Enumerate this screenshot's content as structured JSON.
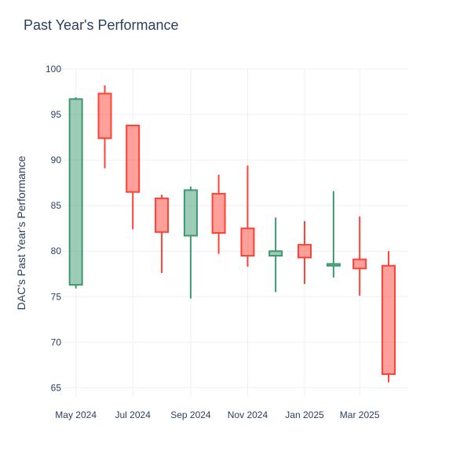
{
  "chart_data": {
    "type": "candlestick",
    "title": "Past Year's Performance",
    "xlabel": "",
    "ylabel": "DAC's Past Year's Performance",
    "ylim": [
      64,
      100
    ],
    "y_ticks": [
      65,
      70,
      75,
      80,
      85,
      90,
      95,
      100
    ],
    "x_ticks": [
      "May 2024",
      "Jul 2024",
      "Sep 2024",
      "Nov 2024",
      "Jan 2025",
      "Mar 2025"
    ],
    "increasing_color": "#3d9970",
    "decreasing_color": "#ff4136",
    "grid": true,
    "candles": [
      {
        "date": "2024-05",
        "open": 76.3,
        "high": 96.9,
        "low": 75.9,
        "close": 96.7
      },
      {
        "date": "2024-06",
        "open": 97.3,
        "high": 98.2,
        "low": 89.1,
        "close": 92.4
      },
      {
        "date": "2024-07",
        "open": 93.8,
        "high": 93.8,
        "low": 82.4,
        "close": 86.5
      },
      {
        "date": "2024-08",
        "open": 85.8,
        "high": 86.2,
        "low": 77.6,
        "close": 82.1
      },
      {
        "date": "2024-09",
        "open": 81.7,
        "high": 87.1,
        "low": 74.8,
        "close": 86.7
      },
      {
        "date": "2024-10",
        "open": 86.3,
        "high": 88.4,
        "low": 79.7,
        "close": 82.0
      },
      {
        "date": "2024-11",
        "open": 82.5,
        "high": 89.4,
        "low": 78.3,
        "close": 79.5
      },
      {
        "date": "2024-12",
        "open": 79.5,
        "high": 83.7,
        "low": 75.5,
        "close": 80.0
      },
      {
        "date": "2025-01",
        "open": 80.7,
        "high": 83.3,
        "low": 76.4,
        "close": 79.3
      },
      {
        "date": "2025-02",
        "open": 78.4,
        "high": 86.6,
        "low": 77.1,
        "close": 78.6
      },
      {
        "date": "2025-03",
        "open": 79.1,
        "high": 83.8,
        "low": 75.1,
        "close": 78.1
      },
      {
        "date": "2025-04",
        "open": 78.4,
        "high": 80.0,
        "low": 65.6,
        "close": 66.5
      }
    ]
  }
}
